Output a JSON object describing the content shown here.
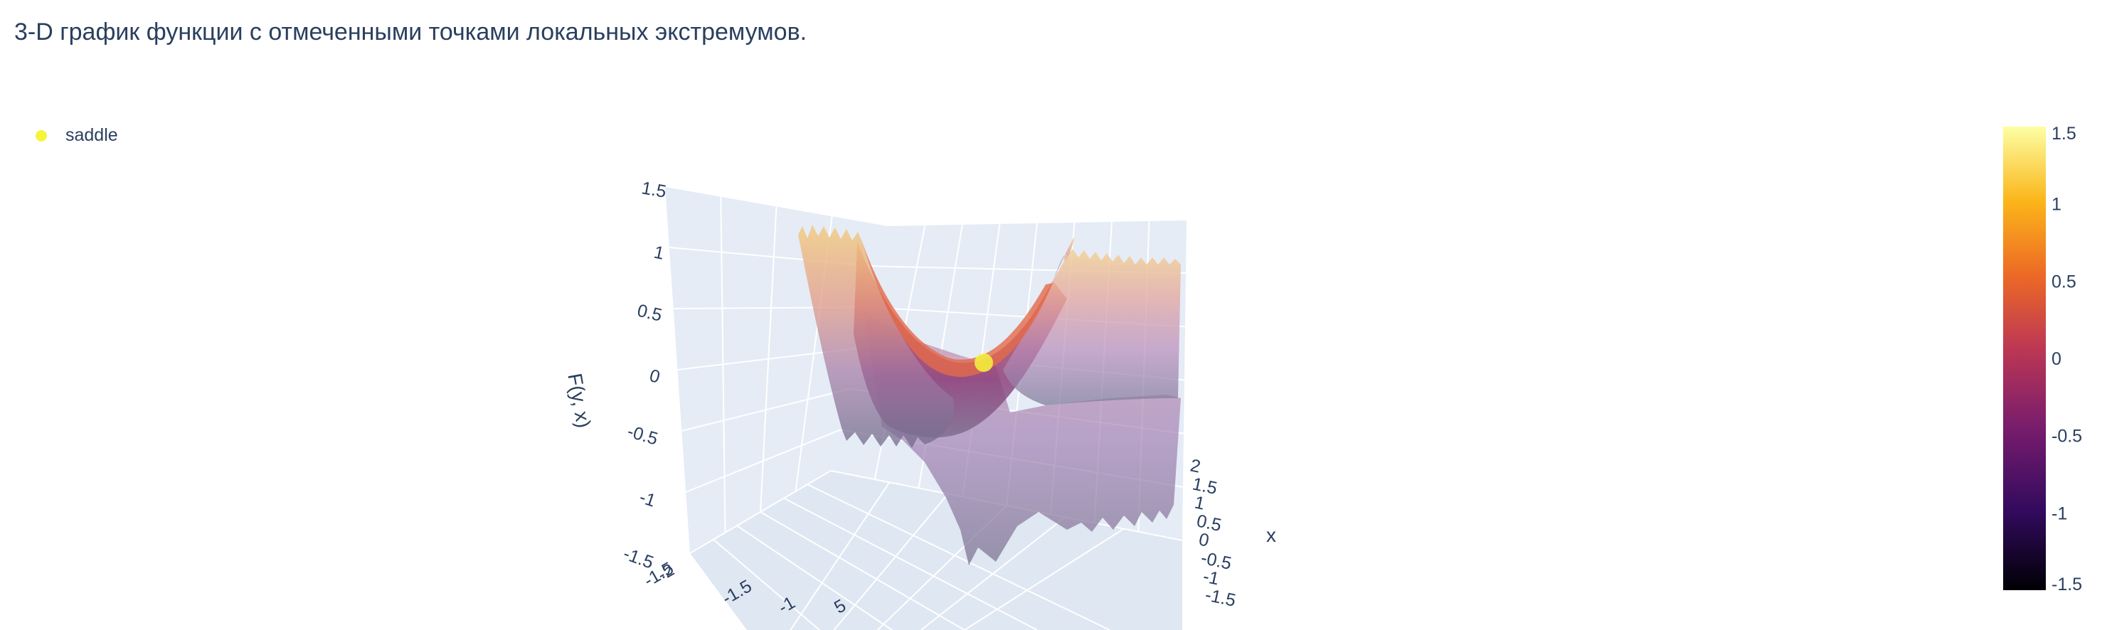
{
  "page": {
    "title": "3-D график функции с отмеченными точками локальных экстремумов."
  },
  "legend": {
    "items": [
      {
        "label": "saddle",
        "color": "#f5f53c"
      }
    ]
  },
  "colors": {
    "background": "#ffffff",
    "scene_bg": "#e5ecf6",
    "grid": "#ffffff",
    "text": "#2a3f5f",
    "marker": "#f5f53c"
  },
  "chart_data": {
    "type": "surface",
    "title": "3-D график функции с отмеченными точками локальных экстремумов.",
    "colorscale": "inferno",
    "colorscale_stops": [
      "#000004",
      "#320a5e",
      "#781c6d",
      "#bc3754",
      "#ed6925",
      "#fbb61a",
      "#fcffa4"
    ],
    "axes": {
      "x": {
        "title": "x",
        "range": [
          -2,
          2
        ],
        "ticks": [
          "-1.5",
          "-1",
          "-0.5",
          "0",
          "0.5",
          "1",
          "1.5",
          "2"
        ]
      },
      "y": {
        "title": "",
        "ticks": [
          "-2",
          "-1.5",
          "-1",
          "5"
        ]
      },
      "z": {
        "title": "F(y, x)",
        "range": [
          -1.5,
          1.5
        ],
        "ticks": [
          "-1.5",
          "-1",
          "-0.5",
          "0",
          "0.5",
          "1",
          "1.5"
        ]
      }
    },
    "colorbar": {
      "range": [
        -1.5,
        1.5
      ],
      "ticks": [
        "1.5",
        "1",
        "0.5",
        "0",
        "-0.5",
        "-1",
        "-1.5"
      ]
    },
    "series": [
      {
        "name": "saddle",
        "type": "scatter3d",
        "points": [
          {
            "x": 0,
            "y": 0,
            "z": 0
          }
        ]
      }
    ]
  }
}
